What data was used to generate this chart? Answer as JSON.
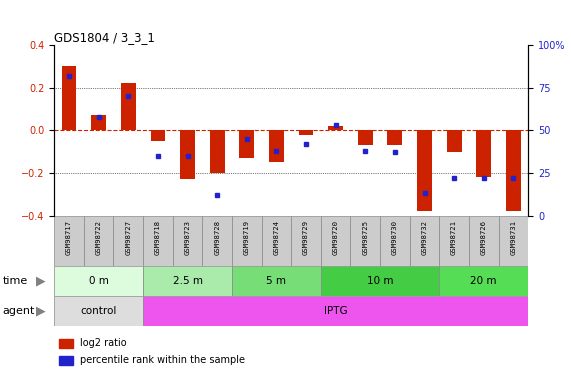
{
  "title": "GDS1804 / 3_3_1",
  "samples": [
    "GSM98717",
    "GSM98722",
    "GSM98727",
    "GSM98718",
    "GSM98723",
    "GSM98728",
    "GSM98719",
    "GSM98724",
    "GSM98729",
    "GSM98720",
    "GSM98725",
    "GSM98730",
    "GSM98732",
    "GSM98721",
    "GSM98726",
    "GSM98731"
  ],
  "log2_ratio": [
    0.3,
    0.07,
    0.22,
    -0.05,
    -0.23,
    -0.2,
    -0.13,
    -0.15,
    -0.02,
    0.02,
    -0.07,
    -0.07,
    -0.38,
    -0.1,
    -0.22,
    -0.38
  ],
  "percentile": [
    82,
    58,
    70,
    35,
    35,
    12,
    45,
    38,
    42,
    53,
    38,
    37,
    13,
    22,
    22,
    22
  ],
  "bar_color": "#cc2200",
  "dot_color": "#2222cc",
  "zero_line_color": "#cc2200",
  "grid_color": "#000000",
  "ylim": [
    -0.4,
    0.4
  ],
  "y_ticks_left": [
    -0.4,
    -0.2,
    0.0,
    0.2,
    0.4
  ],
  "y_ticks_right": [
    0,
    25,
    50,
    75,
    100
  ],
  "time_groups": [
    {
      "label": "0 m",
      "start": 0,
      "end": 3,
      "color": "#ddfcdd"
    },
    {
      "label": "2.5 m",
      "start": 3,
      "end": 6,
      "color": "#aaeaaa"
    },
    {
      "label": "5 m",
      "start": 6,
      "end": 9,
      "color": "#77dd77"
    },
    {
      "label": "10 m",
      "start": 9,
      "end": 13,
      "color": "#44cc44"
    },
    {
      "label": "20 m",
      "start": 13,
      "end": 16,
      "color": "#55dd55"
    }
  ],
  "agent_groups": [
    {
      "label": "control",
      "start": 0,
      "end": 3,
      "color": "#dddddd"
    },
    {
      "label": "IPTG",
      "start": 3,
      "end": 16,
      "color": "#ee55ee"
    }
  ],
  "time_row_label": "time",
  "agent_row_label": "agent",
  "legend_items": [
    {
      "label": "log2 ratio",
      "color": "#cc2200"
    },
    {
      "label": "percentile rank within the sample",
      "color": "#2222cc"
    }
  ],
  "tick_bg_color": "#cccccc",
  "tick_border_color": "#888888"
}
